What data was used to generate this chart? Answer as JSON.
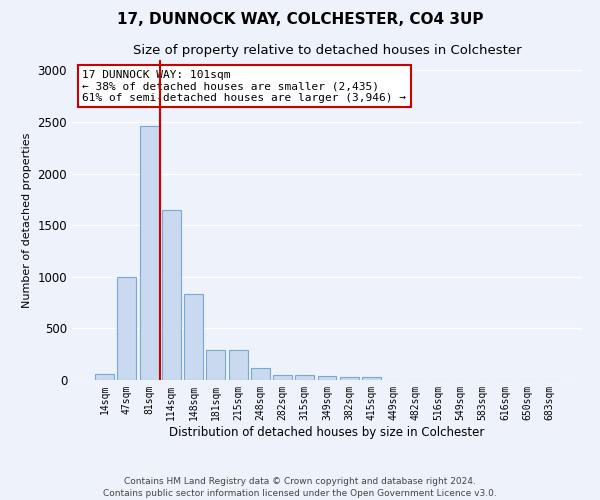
{
  "title": "17, DUNNOCK WAY, COLCHESTER, CO4 3UP",
  "subtitle": "Size of property relative to detached houses in Colchester",
  "xlabel": "Distribution of detached houses by size in Colchester",
  "ylabel": "Number of detached properties",
  "categories": [
    "14sqm",
    "47sqm",
    "81sqm",
    "114sqm",
    "148sqm",
    "181sqm",
    "215sqm",
    "248sqm",
    "282sqm",
    "315sqm",
    "349sqm",
    "382sqm",
    "415sqm",
    "449sqm",
    "482sqm",
    "516sqm",
    "549sqm",
    "583sqm",
    "616sqm",
    "650sqm",
    "683sqm"
  ],
  "values": [
    55,
    1000,
    2460,
    1650,
    830,
    290,
    290,
    120,
    50,
    50,
    35,
    25,
    25,
    0,
    0,
    0,
    0,
    0,
    0,
    0,
    0
  ],
  "bar_color": "#c9d9f0",
  "bar_edgecolor": "#7aa8d4",
  "vline_color": "#cc0000",
  "annotation_text": "17 DUNNOCK WAY: 101sqm\n← 38% of detached houses are smaller (2,435)\n61% of semi-detached houses are larger (3,946) →",
  "annotation_box_color": "#ffffff",
  "annotation_box_edgecolor": "#cc0000",
  "ylim": [
    0,
    3100
  ],
  "yticks": [
    0,
    500,
    1000,
    1500,
    2000,
    2500,
    3000
  ],
  "footer_line1": "Contains HM Land Registry data © Crown copyright and database right 2024.",
  "footer_line2": "Contains public sector information licensed under the Open Government Licence v3.0.",
  "bg_color": "#eef2fa",
  "grid_color": "#ffffff",
  "title_fontsize": 11,
  "subtitle_fontsize": 9.5,
  "annotation_fontsize": 8,
  "footer_fontsize": 6.5,
  "ylabel_fontsize": 8,
  "xlabel_fontsize": 8.5
}
